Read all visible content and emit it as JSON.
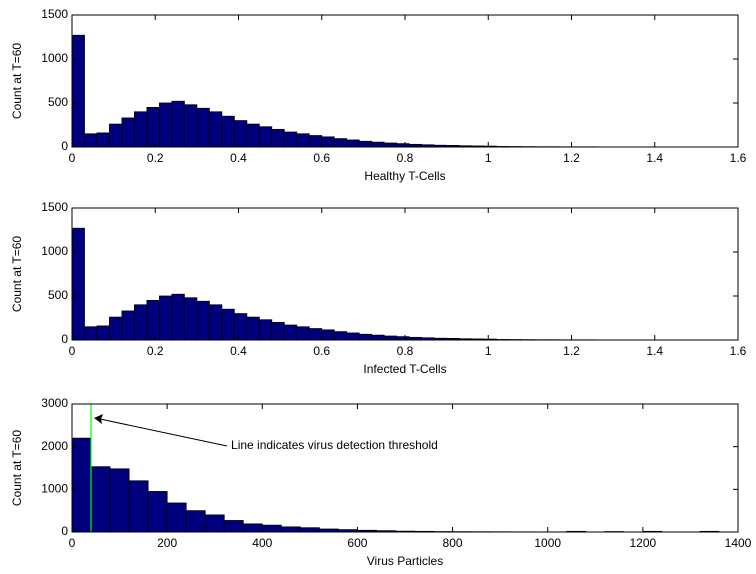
{
  "chart_data": [
    {
      "type": "histogram",
      "xlabel": "Healthy T-Cells",
      "ylabel": "Count at T=60",
      "color": "#00007f",
      "bins": [
        0,
        0.03,
        0.06,
        0.09,
        0.12,
        0.15,
        0.18,
        0.21,
        0.24,
        0.27,
        0.3,
        0.33,
        0.36,
        0.39,
        0.42,
        0.45,
        0.48,
        0.51,
        0.54,
        0.57,
        0.6,
        0.63,
        0.66,
        0.69,
        0.72,
        0.75,
        0.78,
        0.81,
        0.84,
        0.87,
        0.9,
        0.93,
        0.96,
        0.99,
        1.02,
        1.05,
        1.08,
        1.11,
        1.14,
        1.17,
        1.2,
        1.23,
        1.26,
        1.29,
        1.32,
        1.35,
        1.38,
        1.41,
        1.44,
        1.47,
        1.5
      ],
      "values": [
        1270,
        150,
        160,
        260,
        330,
        400,
        450,
        500,
        520,
        480,
        440,
        400,
        350,
        300,
        260,
        230,
        200,
        170,
        150,
        130,
        115,
        95,
        80,
        65,
        55,
        45,
        38,
        30,
        25,
        20,
        18,
        14,
        12,
        10,
        6,
        5,
        4,
        3,
        3,
        2,
        2,
        2,
        1,
        1,
        1,
        1,
        1,
        1,
        1,
        1
      ],
      "xlim": [
        0,
        1.6
      ],
      "xticks": [
        0,
        0.2,
        0.4,
        0.6,
        0.8,
        1,
        1.2,
        1.4,
        1.6
      ],
      "ylim": [
        0,
        1500
      ],
      "yticks": [
        0,
        500,
        1000,
        1500
      ]
    },
    {
      "type": "histogram",
      "xlabel": "Infected T-Cells",
      "ylabel": "Count at T=60",
      "color": "#00007f",
      "bins": [
        0,
        0.03,
        0.06,
        0.09,
        0.12,
        0.15,
        0.18,
        0.21,
        0.24,
        0.27,
        0.3,
        0.33,
        0.36,
        0.39,
        0.42,
        0.45,
        0.48,
        0.51,
        0.54,
        0.57,
        0.6,
        0.63,
        0.66,
        0.69,
        0.72,
        0.75,
        0.78,
        0.81,
        0.84,
        0.87,
        0.9,
        0.93,
        0.96,
        0.99,
        1.02,
        1.05,
        1.08,
        1.11,
        1.14,
        1.17,
        1.2,
        1.23,
        1.26,
        1.29,
        1.32,
        1.35,
        1.38,
        1.41,
        1.44,
        1.47,
        1.5
      ],
      "values": [
        1270,
        150,
        160,
        260,
        330,
        400,
        450,
        500,
        520,
        480,
        440,
        400,
        350,
        300,
        260,
        230,
        200,
        170,
        150,
        130,
        115,
        95,
        80,
        65,
        55,
        45,
        38,
        30,
        25,
        20,
        18,
        14,
        12,
        10,
        6,
        5,
        4,
        3,
        3,
        2,
        2,
        2,
        1,
        1,
        1,
        1,
        1,
        1,
        1,
        1
      ],
      "xlim": [
        0,
        1.6
      ],
      "xticks": [
        0,
        0.2,
        0.4,
        0.6,
        0.8,
        1,
        1.2,
        1.4,
        1.6
      ],
      "ylim": [
        0,
        1500
      ],
      "yticks": [
        0,
        500,
        1000,
        1500
      ]
    },
    {
      "type": "histogram",
      "xlabel": "Virus Particles",
      "ylabel": "Count at T=60",
      "color": "#00007f",
      "bins": [
        0,
        40,
        80,
        120,
        160,
        200,
        240,
        280,
        320,
        360,
        400,
        440,
        480,
        520,
        560,
        600,
        640,
        680,
        720,
        760,
        800,
        840,
        880,
        920,
        960,
        1000,
        1040,
        1080,
        1120,
        1160,
        1200,
        1240,
        1280,
        1320,
        1360
      ],
      "values": [
        2200,
        1530,
        1480,
        1200,
        950,
        680,
        500,
        400,
        270,
        190,
        160,
        120,
        100,
        70,
        55,
        40,
        30,
        20,
        15,
        10,
        8,
        6,
        5,
        4,
        3,
        3,
        15,
        2,
        10,
        2,
        15,
        1,
        2,
        15
      ],
      "xlim": [
        0,
        1400
      ],
      "xticks": [
        0,
        200,
        400,
        600,
        800,
        1000,
        1200,
        1400
      ],
      "ylim": [
        0,
        3000
      ],
      "yticks": [
        0,
        1000,
        2000,
        3000
      ],
      "threshold": 40,
      "threshold_color": "#00ff00",
      "annotation": "Line indicates virus detection threshold"
    }
  ]
}
